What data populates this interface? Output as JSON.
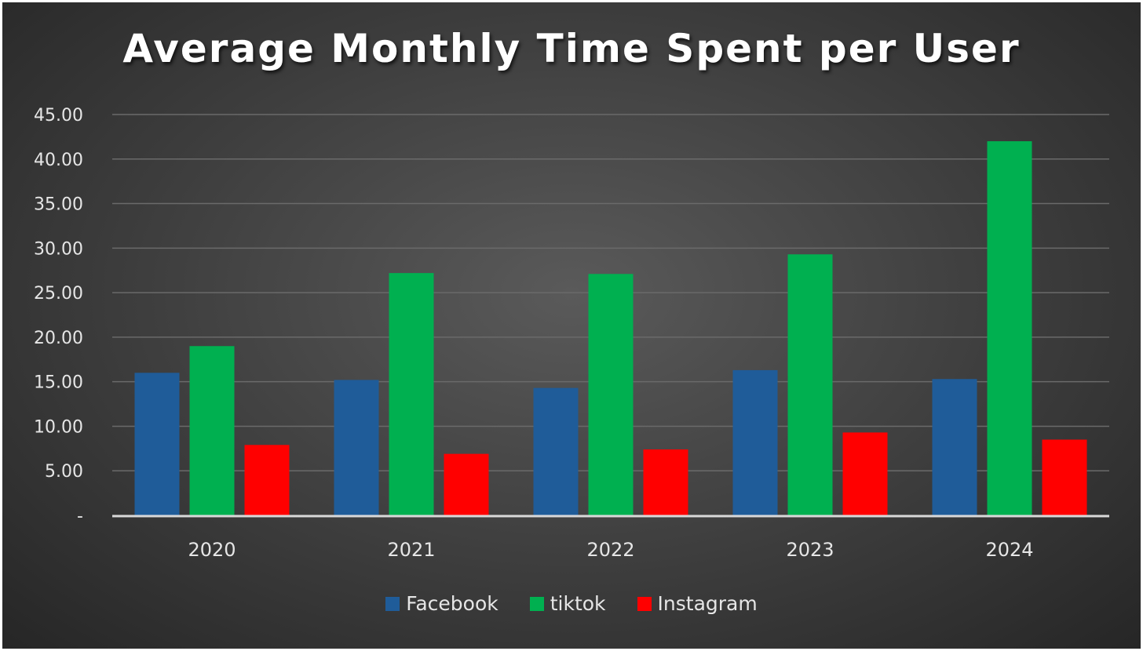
{
  "chart_data": {
    "type": "bar",
    "title": "Average Monthly Time Spent per User",
    "xlabel": "",
    "ylabel": "",
    "categories": [
      "2020",
      "2021",
      "2022",
      "2023",
      "2024"
    ],
    "series": [
      {
        "name": "Facebook",
        "color": "#1f5c99",
        "values": [
          16.0,
          15.2,
          14.3,
          16.3,
          15.3
        ]
      },
      {
        "name": "tiktok",
        "color": "#00b050",
        "values": [
          19.0,
          27.2,
          27.1,
          29.3,
          42.0
        ]
      },
      {
        "name": "Instagram",
        "color": "#ff0000",
        "values": [
          7.9,
          6.9,
          7.4,
          9.3,
          8.5
        ]
      }
    ],
    "ylim": [
      0,
      45
    ],
    "yticks": [
      {
        "value": 0,
        "label": "-"
      },
      {
        "value": 5,
        "label": "5.00"
      },
      {
        "value": 10,
        "label": "10.00"
      },
      {
        "value": 15,
        "label": "15.00"
      },
      {
        "value": 20,
        "label": "20.00"
      },
      {
        "value": 25,
        "label": "25.00"
      },
      {
        "value": 30,
        "label": "30.00"
      },
      {
        "value": 35,
        "label": "35.00"
      },
      {
        "value": 40,
        "label": "40.00"
      },
      {
        "value": 45,
        "label": "45.00"
      }
    ],
    "grid": true,
    "legend_position": "bottom"
  }
}
